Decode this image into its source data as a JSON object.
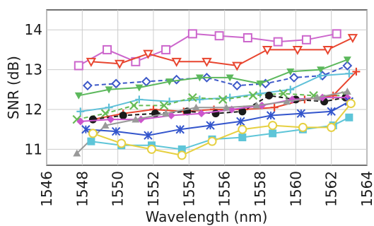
{
  "chart_data": {
    "type": "line",
    "title": "",
    "xlabel": "Wavelength (nm)",
    "ylabel": "SNR (dB)",
    "xlim": [
      1546,
      1564
    ],
    "ylim": [
      10.6,
      14.5
    ],
    "xticks": [
      1546,
      1548,
      1550,
      1552,
      1554,
      1556,
      1558,
      1560,
      1562,
      1564
    ],
    "yticks": [
      11,
      12,
      13,
      14
    ],
    "grid": true,
    "legend": "none",
    "series": [
      {
        "color": "#cc66cc",
        "marker": "square-open",
        "dash": "solid",
        "x": [
          1547.8,
          1549.4,
          1551.0,
          1552.7,
          1554.2,
          1555.7,
          1557.3,
          1559.0,
          1560.6,
          1562.3
        ],
        "y": [
          13.1,
          13.5,
          13.2,
          13.5,
          13.9,
          13.85,
          13.8,
          13.7,
          13.75,
          13.9
        ]
      },
      {
        "color": "#e8452f",
        "marker": "triangle-down-open",
        "dash": "solid",
        "x": [
          1548.5,
          1550.1,
          1551.7,
          1553.3,
          1555.0,
          1556.7,
          1558.4,
          1560.1,
          1561.8,
          1563.2
        ],
        "y": [
          13.2,
          13.15,
          13.4,
          13.2,
          13.2,
          13.1,
          13.5,
          13.5,
          13.5,
          13.8
        ]
      },
      {
        "color": "#3c58c8",
        "marker": "diamond-open",
        "dash": "dashed",
        "x": [
          1548.3,
          1549.9,
          1551.6,
          1553.3,
          1555.0,
          1556.7,
          1558.3,
          1559.9,
          1561.5,
          1562.9
        ],
        "y": [
          12.6,
          12.65,
          12.7,
          12.75,
          12.8,
          12.6,
          12.65,
          12.8,
          12.85,
          13.1
        ]
      },
      {
        "color": "#5cb85c",
        "marker": "triangle-down",
        "dash": "solid",
        "x": [
          1547.8,
          1549.5,
          1551.2,
          1552.9,
          1554.6,
          1556.3,
          1558.0,
          1559.7,
          1561.4,
          1562.9
        ],
        "y": [
          12.35,
          12.5,
          12.55,
          12.7,
          12.8,
          12.8,
          12.65,
          12.95,
          13.0,
          13.25
        ]
      },
      {
        "color": "#5fc0d8",
        "marker": "plus",
        "dash": "solid",
        "x": [
          1547.9,
          1549.5,
          1551.2,
          1552.9,
          1554.6,
          1556.3,
          1558.0,
          1559.7,
          1561.4,
          1563.0
        ],
        "y": [
          11.95,
          12.05,
          12.25,
          12.2,
          12.25,
          12.3,
          12.4,
          12.5,
          12.85,
          12.9
        ]
      },
      {
        "color": "#66bb55",
        "marker": "x",
        "dash": "dashed",
        "x": [
          1547.7,
          1549.3,
          1550.9,
          1552.6,
          1554.2,
          1555.9,
          1557.6,
          1559.3,
          1561.0,
          1562.8
        ],
        "y": [
          11.75,
          11.9,
          12.1,
          12.1,
          12.3,
          12.25,
          12.35,
          12.4,
          12.35,
          12.35
        ]
      },
      {
        "color": "#e8452f",
        "marker": "plus",
        "dash": "solid",
        "x": [
          1548.6,
          1550.3,
          1552.0,
          1553.7,
          1555.4,
          1557.1,
          1558.8,
          1560.5,
          1562.1,
          1563.4
        ],
        "y": [
          11.75,
          11.9,
          12.0,
          11.95,
          12.0,
          12.0,
          12.05,
          12.25,
          12.35,
          12.95
        ]
      },
      {
        "color": "#1a1a1a",
        "marker": "circle",
        "dash": "dashed",
        "x": [
          1548.6,
          1550.3,
          1552.1,
          1553.9,
          1555.5,
          1557.0,
          1558.5,
          1560.0,
          1561.6,
          1562.8
        ],
        "y": [
          11.75,
          11.85,
          11.9,
          11.95,
          11.9,
          11.95,
          12.35,
          12.25,
          12.2,
          12.3
        ]
      },
      {
        "color": "#cc55cc",
        "marker": "diamond",
        "dash": "solid",
        "x": [
          1547.9,
          1549.6,
          1551.3,
          1553.0,
          1554.7,
          1556.4,
          1558.1,
          1559.8,
          1561.5,
          1562.9
        ],
        "y": [
          11.7,
          11.75,
          11.75,
          11.85,
          11.9,
          12.0,
          12.1,
          12.25,
          12.3,
          12.3
        ]
      },
      {
        "color": "#999999",
        "marker": "triangle-up",
        "dash": "solid",
        "x": [
          1547.7,
          1549.3,
          1551.0,
          1552.7,
          1554.4,
          1556.1,
          1557.8,
          1559.5,
          1561.2,
          1562.9
        ],
        "y": [
          10.9,
          11.6,
          11.75,
          11.9,
          12.05,
          12.05,
          12.1,
          12.2,
          12.3,
          12.45
        ]
      },
      {
        "color": "#3355cc",
        "marker": "asterisk",
        "dash": "solid",
        "x": [
          1548.2,
          1549.9,
          1551.7,
          1553.5,
          1555.2,
          1556.9,
          1558.6,
          1560.3,
          1562.0,
          1563.0
        ],
        "y": [
          11.5,
          11.45,
          11.35,
          11.5,
          11.6,
          11.7,
          11.85,
          11.9,
          11.95,
          12.2
        ]
      },
      {
        "color": "#5ec5d8",
        "marker": "square",
        "dash": "solid",
        "x": [
          1548.5,
          1550.2,
          1551.9,
          1553.6,
          1555.3,
          1557.0,
          1558.7,
          1560.4,
          1562.1,
          1563.0
        ],
        "y": [
          11.2,
          11.1,
          11.1,
          11.0,
          11.25,
          11.3,
          11.4,
          11.5,
          11.6,
          11.8
        ]
      },
      {
        "color": "#e6d040",
        "marker": "circle-open",
        "dash": "solid",
        "x": [
          1548.6,
          1550.2,
          1551.9,
          1553.6,
          1555.3,
          1557.0,
          1558.7,
          1560.4,
          1562.0,
          1563.1
        ],
        "y": [
          11.4,
          11.15,
          11.0,
          10.85,
          11.2,
          11.5,
          11.6,
          11.55,
          11.55,
          12.15
        ]
      }
    ]
  }
}
